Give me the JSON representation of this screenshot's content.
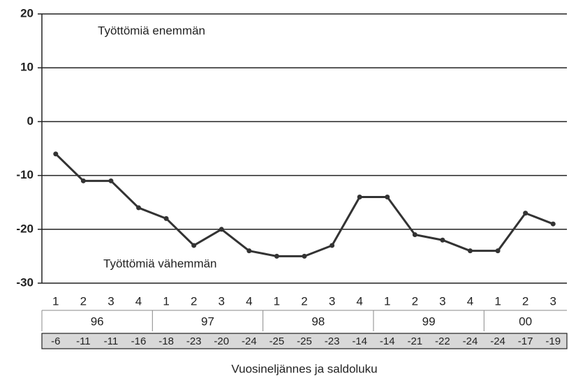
{
  "chart_data": {
    "type": "line",
    "x_label": "Vuosineljännes ja saldoluku",
    "annotations": [
      "Työttömiä enemmän",
      "Työttömiä vähemmän"
    ],
    "categories": [
      "1",
      "2",
      "3",
      "4",
      "1",
      "2",
      "3",
      "4",
      "1",
      "2",
      "3",
      "4",
      "1",
      "2",
      "3",
      "4",
      "1",
      "2",
      "3"
    ],
    "year_groups": [
      "96",
      "97",
      "98",
      "99",
      "00"
    ],
    "values": [
      -6,
      -11,
      -11,
      -16,
      -18,
      -23,
      -20,
      -24,
      -25,
      -25,
      -23,
      -14,
      -14,
      -21,
      -22,
      -24,
      -24,
      -17,
      -19
    ],
    "color": "#333333",
    "ylim": [
      -30,
      20
    ],
    "yticks": [
      -30,
      -20,
      -10,
      0,
      10,
      20
    ],
    "grid": true
  }
}
